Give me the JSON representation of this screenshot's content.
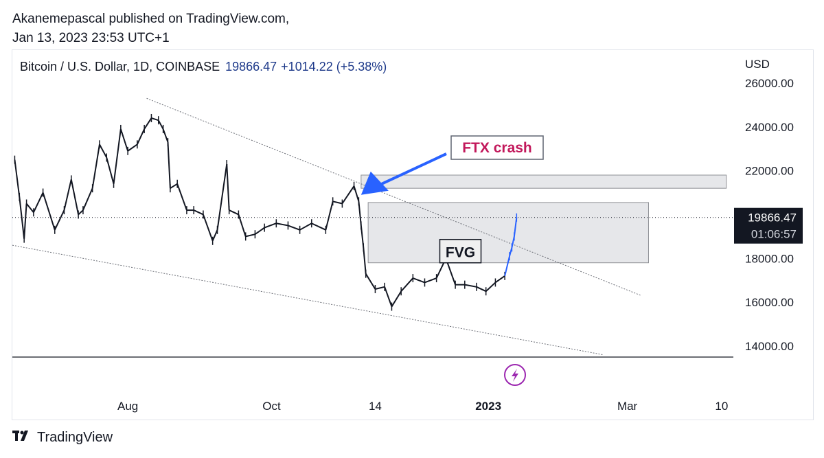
{
  "publisher": {
    "line1": "Akanemepascal published on TradingView.com,",
    "line2": "Jan 13, 2023 23:53 UTC+1"
  },
  "symbol": {
    "name": "Bitcoin / U.S. Dollar, 1D, COINBASE",
    "price": "19866.47",
    "change": "+1014.22 (+5.38%)"
  },
  "footer": {
    "brand": "TradingView",
    "logo_icon": "tradingview-logo-icon"
  },
  "colors": {
    "candle": "#131722",
    "candle_recent": "#2962ff",
    "arrow": "#2962ff",
    "ftx_label": "#c2185b",
    "zone_fill": "#e6e7ea",
    "zone_border": "#8d8f94"
  },
  "chart_data": {
    "type": "line",
    "title": "Bitcoin / U.S. Dollar, 1D, COINBASE",
    "ylabel": "USD",
    "ylim": [
      13500,
      27500
    ],
    "y_ticks": [
      14000,
      16000,
      18000,
      20000,
      22000,
      24000,
      26000
    ],
    "y_tick_labels": [
      "14000.00",
      "16000.00",
      "18000.00",
      "",
      "22000.00",
      "24000.00",
      "26000.00"
    ],
    "x_tick_labels": [
      "Aug",
      "Oct",
      "14",
      "2023",
      "Mar",
      "10"
    ],
    "x_tick_dates": [
      "2022-08-01",
      "2022-10-01",
      "2022-11-14",
      "2023-01-01",
      "2023-03-01",
      "2023-04-10"
    ],
    "x_tick_bold": [
      "2023"
    ],
    "last_price": {
      "value": 19866.47,
      "label": "19866.47",
      "countdown": "01:06:57"
    },
    "series": [
      {
        "x": [
          "2022-06-14",
          "2022-06-16",
          "2022-06-18",
          "2022-06-19",
          "2022-06-22",
          "2022-06-26",
          "2022-07-01",
          "2022-07-05",
          "2022-07-08",
          "2022-07-11",
          "2022-07-13",
          "2022-07-17",
          "2022-07-20",
          "2022-07-23",
          "2022-07-26",
          "2022-07-29",
          "2022-08-01",
          "2022-08-05",
          "2022-08-08",
          "2022-08-11",
          "2022-08-14",
          "2022-08-16",
          "2022-08-18",
          "2022-08-19",
          "2022-08-22",
          "2022-08-26",
          "2022-08-29",
          "2022-09-02",
          "2022-09-06",
          "2022-09-08",
          "2022-09-12",
          "2022-09-13",
          "2022-09-17",
          "2022-09-20",
          "2022-09-24",
          "2022-09-28",
          "2022-10-03",
          "2022-10-08",
          "2022-10-13",
          "2022-10-18",
          "2022-10-24",
          "2022-10-27",
          "2022-10-31",
          "2022-11-05",
          "2022-11-07",
          "2022-11-08",
          "2022-11-09",
          "2022-11-10",
          "2022-11-14",
          "2022-11-18",
          "2022-11-21",
          "2022-11-25",
          "2022-11-30",
          "2022-12-05",
          "2022-12-10",
          "2022-12-14",
          "2022-12-18",
          "2022-12-22",
          "2022-12-27",
          "2022-12-31",
          "2023-01-04",
          "2023-01-08",
          "2023-01-10",
          "2023-01-11",
          "2023-01-12",
          "2023-01-13"
        ],
        "y": [
          22500,
          20800,
          18900,
          20500,
          20100,
          21000,
          19300,
          20200,
          21600,
          20000,
          20200,
          21200,
          23200,
          22600,
          21400,
          23900,
          22900,
          23200,
          23900,
          24400,
          24300,
          23900,
          23300,
          21200,
          21400,
          20200,
          20200,
          20000,
          18800,
          19300,
          22300,
          20200,
          20000,
          19000,
          19100,
          19400,
          19600,
          19500,
          19300,
          19600,
          19300,
          20600,
          20500,
          21300,
          20600,
          19500,
          18500,
          17300,
          16600,
          16700,
          15800,
          16500,
          17100,
          16900,
          17100,
          18000,
          16800,
          16800,
          16700,
          16500,
          16900,
          17200,
          18100,
          18500,
          19000,
          19866
        ]
      }
    ],
    "annotations": [
      {
        "type": "label",
        "text": "FTX crash",
        "at": [
          "2022-11-08",
          20900
        ]
      },
      {
        "type": "label",
        "text": "FVG",
        "x": "2022-12-12",
        "y": 18300
      },
      {
        "type": "zone",
        "name": "upper-zone",
        "x": [
          "2022-11-08",
          "2023-04-12"
        ],
        "y": [
          21200,
          21800
        ]
      },
      {
        "type": "zone",
        "name": "fvg-zone",
        "x": [
          "2022-11-11",
          "2023-03-10"
        ],
        "y": [
          17800,
          20550
        ]
      },
      {
        "type": "trendline",
        "from": [
          "2022-08-09",
          25300
        ],
        "to": [
          "2023-03-07",
          16300
        ]
      },
      {
        "type": "trendline",
        "from": [
          "2022-06-13",
          18600
        ],
        "to": [
          "2023-02-19",
          13600
        ]
      }
    ]
  }
}
